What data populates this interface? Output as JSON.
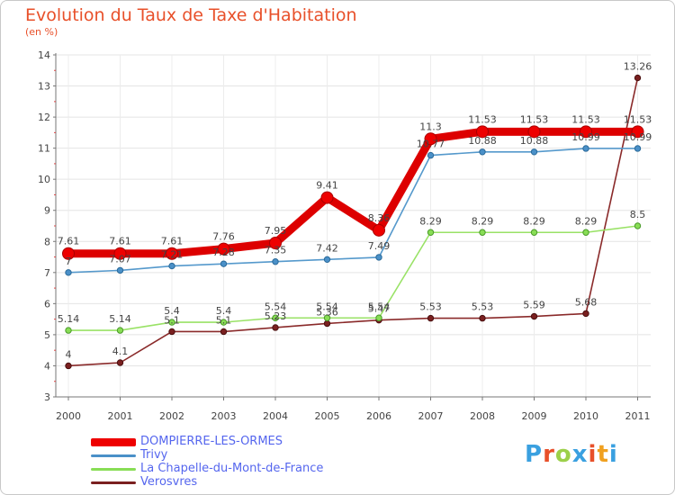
{
  "header": {
    "title": "Evolution du Taux de Taxe d'Habitation",
    "unit": "(en %)"
  },
  "branding": {
    "letters": [
      "P",
      "r",
      "o",
      "x",
      "i",
      "t",
      "i"
    ],
    "colors": [
      "#3aa0e0",
      "#e8502a",
      "#9cd04a",
      "#3aa0e0",
      "#e8502a",
      "#f0a020",
      "#3aa0e0"
    ]
  },
  "chart_data": {
    "type": "line",
    "title": "Evolution du Taux de Taxe d'Habitation",
    "ylabel": "(en %)",
    "xlabel": "",
    "x": [
      "2000",
      "2001",
      "2002",
      "2003",
      "2004",
      "2005",
      "2006",
      "2007",
      "2008",
      "2009",
      "2010",
      "2011"
    ],
    "ylim": [
      3,
      14
    ],
    "yticks": [
      "3",
      "4",
      "5",
      "6",
      "7",
      "8",
      "9",
      "10",
      "11",
      "12",
      "13",
      "14"
    ],
    "grid": true,
    "legend_position": "bottom",
    "series": [
      {
        "name": "DOMPIERRE-LES-ORMES",
        "color": "#ee0000",
        "values": [
          7.61,
          7.61,
          7.61,
          7.76,
          7.95,
          9.41,
          8.36,
          11.3,
          11.53,
          11.53,
          11.53,
          11.53
        ],
        "labels": [
          "7.61",
          "7.61",
          "7.61",
          "7.76",
          "7.95",
          "9.41",
          "8.36",
          "11.3",
          "11.53",
          "11.53",
          "11.53",
          "11.53"
        ]
      },
      {
        "name": "Trivy",
        "color": "#4a90c8",
        "values": [
          7,
          7.07,
          7.21,
          7.28,
          7.35,
          7.42,
          7.49,
          10.77,
          10.88,
          10.88,
          10.99,
          10.99
        ],
        "labels": [
          "7",
          "7.07",
          "7.21",
          "7.28",
          "7.35",
          "7.42",
          "7.49",
          "10.77",
          "10.88",
          "10.88",
          "10.99",
          "10.99"
        ]
      },
      {
        "name": "La Chapelle-du-Mont-de-France",
        "color": "#88dd55",
        "values": [
          5.14,
          5.14,
          5.4,
          5.4,
          5.54,
          5.54,
          5.54,
          8.29,
          8.29,
          8.29,
          8.29,
          8.5
        ],
        "labels": [
          "5.14",
          "5.14",
          "5.4",
          "5.4",
          "5.54",
          "5.54",
          "5.54",
          "8.29",
          "8.29",
          "8.29",
          "8.29",
          "8.5"
        ]
      },
      {
        "name": "Verosvres",
        "color": "#7a2020",
        "values": [
          4,
          4.1,
          5.1,
          5.1,
          5.23,
          5.36,
          5.47,
          5.53,
          5.53,
          5.59,
          5.68,
          13.26
        ],
        "labels": [
          "4",
          "4.1",
          "5.1",
          "5.1",
          "5.23",
          "5.36",
          "5.47",
          "5.53",
          "5.53",
          "5.59",
          "5.68",
          "13.26"
        ]
      }
    ]
  }
}
